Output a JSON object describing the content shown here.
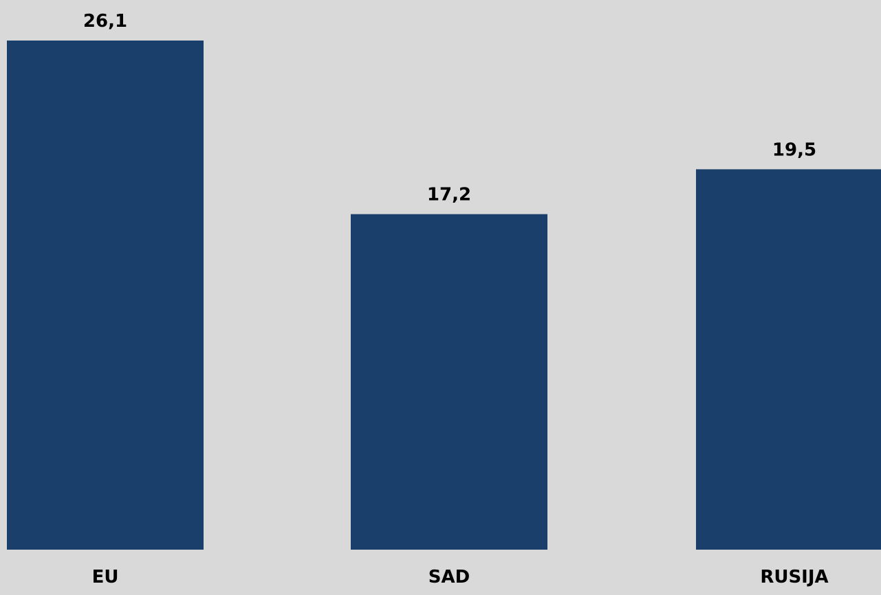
{
  "chart_data": {
    "type": "bar",
    "categories": [
      "EU",
      "SAD",
      "RUSIJA"
    ],
    "values": [
      26.1,
      17.2,
      19.5
    ],
    "value_labels": [
      "26,1",
      "17,2",
      "19,5"
    ],
    "title": "",
    "xlabel": "",
    "ylabel": "",
    "ylim": [
      0,
      26.1
    ],
    "grid": false,
    "legend": "none",
    "bar_color": "#1b3f6b",
    "background_color": "#d9d9d9"
  }
}
